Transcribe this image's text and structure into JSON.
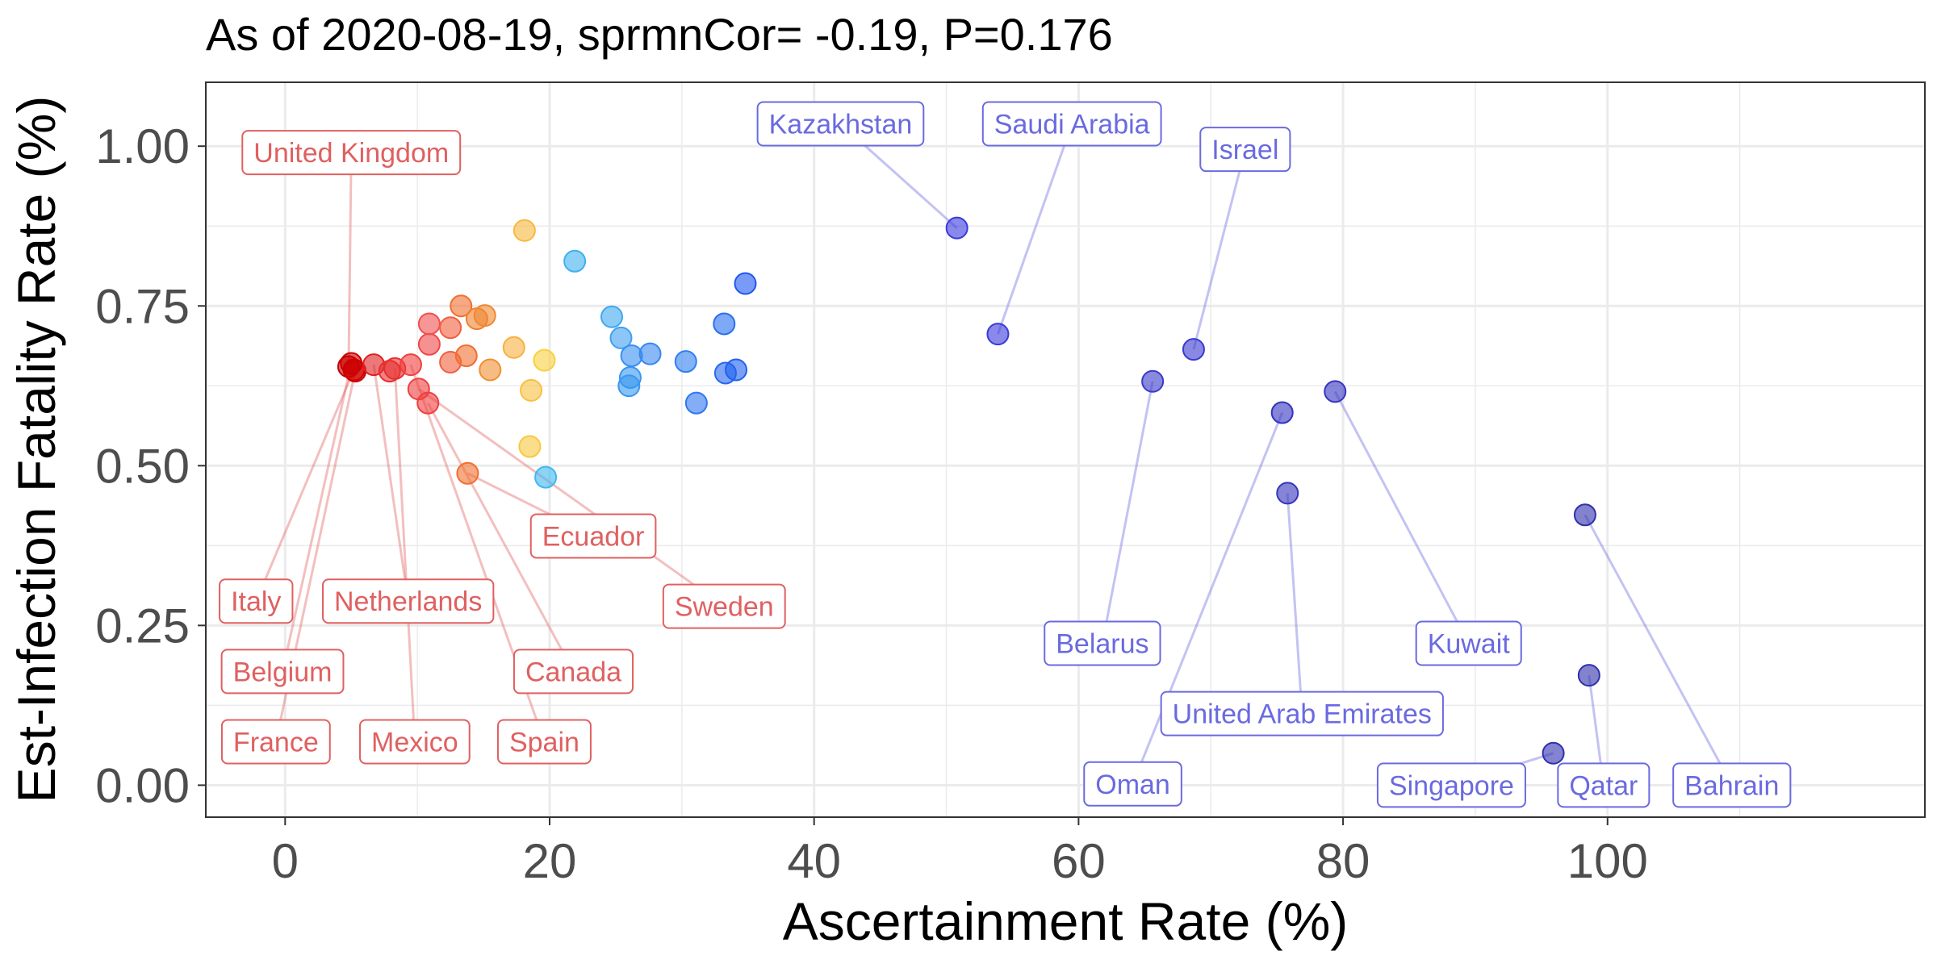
{
  "chart_data": {
    "type": "scatter",
    "title": "As of 2020-08-19, sprmnCor= -0.19, P=0.176",
    "xlabel": "Ascertainment Rate (%)",
    "ylabel": "Est-Infection Fatality Rate (%)",
    "xlim": [
      -6,
      124
    ],
    "ylim": [
      -0.05,
      1.1
    ],
    "x_ticks": [
      0,
      20,
      40,
      60,
      80,
      100
    ],
    "x_tick_labels": [
      "0",
      "20",
      "40",
      "60",
      "80",
      "100"
    ],
    "y_ticks": [
      0,
      0.25,
      0.5,
      0.75,
      1
    ],
    "y_tick_labels": [
      "0.00",
      "0.25",
      "0.50",
      "0.75",
      "1.00"
    ],
    "grid": true,
    "legend": "none",
    "colors": {
      "low_label": "#e06060",
      "high_label": "#6a6ae0",
      "grid": "#ebebeb",
      "axis_text": "#4d4d4d"
    },
    "points": [
      {
        "x": 4.8,
        "y": 0.655,
        "color": "#c00000",
        "label": "United Kingdom",
        "label_x": 5.0,
        "label_y": 0.99,
        "group": "low"
      },
      {
        "x": 5.2,
        "y": 0.65,
        "color": "#cc0000",
        "label": "Italy",
        "label_x": -2.2,
        "label_y": 0.288,
        "group": "low"
      },
      {
        "x": 5.0,
        "y": 0.66,
        "color": "#cc0000",
        "label": "Belgium",
        "label_x": -0.2,
        "label_y": 0.178,
        "group": "low"
      },
      {
        "x": 5.3,
        "y": 0.648,
        "color": "#d00000",
        "label": "France",
        "label_x": -0.7,
        "label_y": 0.068,
        "group": "low"
      },
      {
        "x": 6.7,
        "y": 0.658,
        "color": "#e02020",
        "label": "Netherlands",
        "label_x": 9.3,
        "label_y": 0.288,
        "group": "low"
      },
      {
        "x": 8.3,
        "y": 0.652,
        "color": "#e83030",
        "label": "Mexico",
        "label_x": 9.8,
        "label_y": 0.068,
        "group": "low"
      },
      {
        "x": 9.5,
        "y": 0.658,
        "color": "#f04040",
        "label": "Spain",
        "label_x": 19.6,
        "label_y": 0.068,
        "group": "low"
      },
      {
        "x": 10.8,
        "y": 0.598,
        "color": "#f04040",
        "label": "Canada",
        "label_x": 21.8,
        "label_y": 0.178,
        "group": "low"
      },
      {
        "x": 13.8,
        "y": 0.488,
        "color": "#f07030",
        "label": "Ecuador",
        "label_x": 23.3,
        "label_y": 0.39,
        "group": "low"
      },
      {
        "x": 10.1,
        "y": 0.62,
        "color": "#f04040",
        "label": "Sweden",
        "label_x": 33.2,
        "label_y": 0.28,
        "group": "low"
      },
      {
        "x": 7.9,
        "y": 0.648,
        "color": "#e83030"
      },
      {
        "x": 10.9,
        "y": 0.69,
        "color": "#f04848"
      },
      {
        "x": 10.9,
        "y": 0.722,
        "color": "#f05050"
      },
      {
        "x": 12.5,
        "y": 0.716,
        "color": "#f06040"
      },
      {
        "x": 12.5,
        "y": 0.662,
        "color": "#f06040"
      },
      {
        "x": 13.3,
        "y": 0.75,
        "color": "#f07030"
      },
      {
        "x": 13.7,
        "y": 0.672,
        "color": "#f07030"
      },
      {
        "x": 14.5,
        "y": 0.73,
        "color": "#f08030"
      },
      {
        "x": 15.1,
        "y": 0.735,
        "color": "#f08830"
      },
      {
        "x": 15.5,
        "y": 0.65,
        "color": "#f09030"
      },
      {
        "x": 17.3,
        "y": 0.685,
        "color": "#f8b040"
      },
      {
        "x": 18.1,
        "y": 0.868,
        "color": "#f8b840"
      },
      {
        "x": 18.5,
        "y": 0.53,
        "color": "#f8c840"
      },
      {
        "x": 18.6,
        "y": 0.618,
        "color": "#f8c040"
      },
      {
        "x": 19.6,
        "y": 0.665,
        "color": "#f8d040"
      },
      {
        "x": 19.7,
        "y": 0.482,
        "color": "#40b8f0"
      },
      {
        "x": 21.9,
        "y": 0.82,
        "color": "#40b0f0"
      },
      {
        "x": 24.7,
        "y": 0.733,
        "color": "#40a8f0"
      },
      {
        "x": 25.4,
        "y": 0.7,
        "color": "#40a0f0"
      },
      {
        "x": 26.0,
        "y": 0.625,
        "color": "#3898f0"
      },
      {
        "x": 26.1,
        "y": 0.638,
        "color": "#3898f0"
      },
      {
        "x": 26.2,
        "y": 0.672,
        "color": "#3890f0"
      },
      {
        "x": 27.6,
        "y": 0.675,
        "color": "#3888f0"
      },
      {
        "x": 30.3,
        "y": 0.663,
        "color": "#3080f0"
      },
      {
        "x": 31.1,
        "y": 0.598,
        "color": "#3078f0"
      },
      {
        "x": 33.2,
        "y": 0.722,
        "color": "#2870f0"
      },
      {
        "x": 33.3,
        "y": 0.645,
        "color": "#2868f0"
      },
      {
        "x": 34.1,
        "y": 0.65,
        "color": "#2060f0"
      },
      {
        "x": 34.8,
        "y": 0.785,
        "color": "#2058f0"
      },
      {
        "x": 50.8,
        "y": 0.872,
        "color": "#3a3ae0",
        "label": "Kazakhstan",
        "label_x": 42.0,
        "label_y": 1.035,
        "group": "high"
      },
      {
        "x": 53.9,
        "y": 0.706,
        "color": "#3a3adc",
        "label": "Saudi Arabia",
        "label_x": 59.5,
        "label_y": 1.035,
        "group": "high"
      },
      {
        "x": 68.7,
        "y": 0.682,
        "color": "#3a3ad0",
        "label": "Israel",
        "label_x": 72.6,
        "label_y": 0.995,
        "group": "high"
      },
      {
        "x": 65.6,
        "y": 0.632,
        "color": "#3a3acc",
        "label": "Belarus",
        "label_x": 61.8,
        "label_y": 0.222,
        "group": "high"
      },
      {
        "x": 79.4,
        "y": 0.616,
        "color": "#3434c0",
        "label": "Kuwait",
        "label_x": 89.5,
        "label_y": 0.222,
        "group": "high"
      },
      {
        "x": 75.4,
        "y": 0.583,
        "color": "#3434c0",
        "label": "Oman",
        "label_x": 64.1,
        "label_y": 0.002,
        "group": "high"
      },
      {
        "x": 75.8,
        "y": 0.457,
        "color": "#3434bc",
        "label": "United Arab Emirates",
        "label_x": 76.9,
        "label_y": 0.112,
        "group": "high"
      },
      {
        "x": 95.9,
        "y": 0.05,
        "color": "#3030b0",
        "label": "Singapore",
        "label_x": 88.2,
        "label_y": 0.0,
        "group": "high"
      },
      {
        "x": 98.6,
        "y": 0.172,
        "color": "#3030ac",
        "label": "Qatar",
        "label_x": 99.7,
        "label_y": 0.0,
        "group": "high"
      },
      {
        "x": 98.3,
        "y": 0.423,
        "color": "#3030ac",
        "label": "Bahrain",
        "label_x": 109.4,
        "label_y": 0.0,
        "group": "high"
      }
    ]
  }
}
